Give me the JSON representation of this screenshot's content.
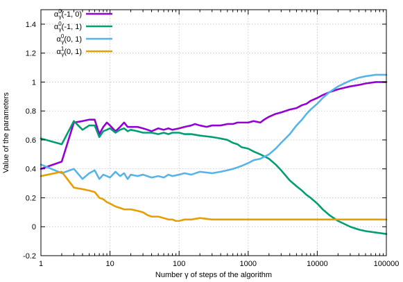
{
  "chart_data": {
    "type": "line",
    "xlabel": "Number γ of steps of the algorithm",
    "ylabel": "Value of the parameters",
    "xscale": "log",
    "xlim": [
      1,
      100000
    ],
    "ylim": [
      -0.2,
      1.5
    ],
    "x_ticks": [
      {
        "value": 1,
        "label": "1"
      },
      {
        "value": 10,
        "label": "10"
      },
      {
        "value": 100,
        "label": "100"
      },
      {
        "value": 1000,
        "label": "1000"
      },
      {
        "value": 10000,
        "label": "10000"
      },
      {
        "value": 100000,
        "label": "100000"
      }
    ],
    "y_ticks": [
      {
        "value": -0.2,
        "label": "-0.2"
      },
      {
        "value": 0,
        "label": "0"
      },
      {
        "value": 0.2,
        "label": "0.2"
      },
      {
        "value": 0.4,
        "label": "0.4"
      },
      {
        "value": 0.6,
        "label": "0.6"
      },
      {
        "value": 0.8,
        "label": "0.8"
      },
      {
        "value": 1,
        "label": "1"
      },
      {
        "value": 1.2,
        "label": "1.2"
      },
      {
        "value": 1.4,
        "label": "1.4"
      }
    ],
    "grid": true,
    "legend_position": "top-right",
    "series": [
      {
        "name": "α0γ(-1, 0)",
        "label_parts": {
          "base": "α",
          "sup": "0",
          "sub": "γ",
          "args": "(-1, 0)"
        },
        "color": "#9400d3",
        "x": [
          1,
          2,
          3,
          4,
          5,
          6,
          7,
          8,
          9,
          10,
          12,
          14,
          16,
          18,
          20,
          25,
          30,
          35,
          40,
          50,
          60,
          70,
          80,
          100,
          120,
          150,
          170,
          200,
          250,
          300,
          400,
          500,
          600,
          700,
          800,
          1000,
          1200,
          1500,
          1700,
          2000,
          2500,
          3000,
          4000,
          5000,
          6000,
          7000,
          8000,
          10000,
          12000,
          15000,
          20000,
          30000,
          40000,
          50000,
          70000,
          100000
        ],
        "y": [
          0.4,
          0.45,
          0.72,
          0.73,
          0.74,
          0.74,
          0.64,
          0.69,
          0.72,
          0.7,
          0.66,
          0.69,
          0.72,
          0.69,
          0.69,
          0.69,
          0.68,
          0.67,
          0.66,
          0.68,
          0.67,
          0.68,
          0.67,
          0.68,
          0.69,
          0.7,
          0.71,
          0.7,
          0.69,
          0.7,
          0.7,
          0.71,
          0.71,
          0.72,
          0.72,
          0.72,
          0.73,
          0.72,
          0.74,
          0.76,
          0.78,
          0.79,
          0.81,
          0.82,
          0.84,
          0.85,
          0.87,
          0.89,
          0.91,
          0.93,
          0.95,
          0.97,
          0.98,
          0.99,
          1.0,
          1.0
        ]
      },
      {
        "name": "α0γ(-1, 1)",
        "label_parts": {
          "base": "α",
          "sup": "0",
          "sub": "γ",
          "args": "(-1, 1)"
        },
        "color": "#009e73",
        "x": [
          1,
          2,
          3,
          4,
          5,
          6,
          7,
          8,
          9,
          10,
          12,
          14,
          16,
          18,
          20,
          25,
          30,
          40,
          50,
          60,
          70,
          80,
          100,
          120,
          150,
          200,
          300,
          400,
          500,
          600,
          700,
          800,
          1000,
          1200,
          1500,
          2000,
          2500,
          3000,
          4000,
          5000,
          6000,
          7000,
          8000,
          10000,
          12000,
          15000,
          20000,
          30000,
          40000,
          50000,
          70000,
          100000
        ],
        "y": [
          0.61,
          0.57,
          0.73,
          0.67,
          0.7,
          0.7,
          0.62,
          0.66,
          0.67,
          0.68,
          0.65,
          0.67,
          0.68,
          0.66,
          0.67,
          0.66,
          0.65,
          0.65,
          0.64,
          0.65,
          0.64,
          0.65,
          0.65,
          0.64,
          0.64,
          0.63,
          0.62,
          0.61,
          0.6,
          0.58,
          0.57,
          0.55,
          0.54,
          0.52,
          0.5,
          0.47,
          0.43,
          0.39,
          0.32,
          0.28,
          0.25,
          0.22,
          0.2,
          0.16,
          0.12,
          0.08,
          0.04,
          0.0,
          -0.02,
          -0.03,
          -0.04,
          -0.05
        ]
      },
      {
        "name": "α0γ(0, 1)",
        "label_parts": {
          "base": "α",
          "sup": "0",
          "sub": "γ",
          "args": "(0, 1)"
        },
        "color": "#56b4e9",
        "x": [
          1,
          2,
          3,
          4,
          5,
          6,
          7,
          8,
          9,
          10,
          12,
          14,
          16,
          18,
          20,
          25,
          30,
          40,
          50,
          60,
          70,
          80,
          100,
          120,
          150,
          200,
          300,
          400,
          500,
          600,
          700,
          800,
          1000,
          1200,
          1500,
          2000,
          2500,
          3000,
          4000,
          5000,
          6000,
          7000,
          8000,
          10000,
          12000,
          15000,
          20000,
          30000,
          40000,
          50000,
          70000,
          100000
        ],
        "y": [
          0.43,
          0.37,
          0.4,
          0.33,
          0.37,
          0.39,
          0.33,
          0.36,
          0.35,
          0.34,
          0.38,
          0.35,
          0.37,
          0.33,
          0.36,
          0.35,
          0.36,
          0.34,
          0.35,
          0.34,
          0.36,
          0.35,
          0.36,
          0.37,
          0.36,
          0.38,
          0.37,
          0.38,
          0.39,
          0.4,
          0.41,
          0.42,
          0.44,
          0.46,
          0.47,
          0.5,
          0.54,
          0.58,
          0.64,
          0.7,
          0.74,
          0.78,
          0.81,
          0.85,
          0.89,
          0.93,
          0.97,
          1.01,
          1.03,
          1.04,
          1.05,
          1.05
        ]
      },
      {
        "name": "α1γ(0, 1)",
        "label_parts": {
          "base": "α",
          "sup": "1",
          "sub": "γ",
          "args": "(0, 1)"
        },
        "color": "#e69f00",
        "x": [
          1,
          2,
          3,
          4,
          5,
          6,
          7,
          8,
          9,
          10,
          12,
          14,
          16,
          18,
          20,
          25,
          30,
          35,
          40,
          50,
          60,
          70,
          80,
          90,
          100,
          120,
          150,
          200,
          300,
          500,
          700,
          1000,
          2000,
          5000,
          10000,
          20000,
          50000,
          100000
        ],
        "y": [
          0.35,
          0.38,
          0.27,
          0.26,
          0.25,
          0.24,
          0.2,
          0.19,
          0.17,
          0.16,
          0.14,
          0.13,
          0.12,
          0.12,
          0.12,
          0.11,
          0.1,
          0.08,
          0.07,
          0.07,
          0.06,
          0.05,
          0.05,
          0.04,
          0.04,
          0.05,
          0.05,
          0.06,
          0.05,
          0.05,
          0.05,
          0.05,
          0.05,
          0.05,
          0.05,
          0.05,
          0.05,
          0.05
        ]
      }
    ]
  }
}
